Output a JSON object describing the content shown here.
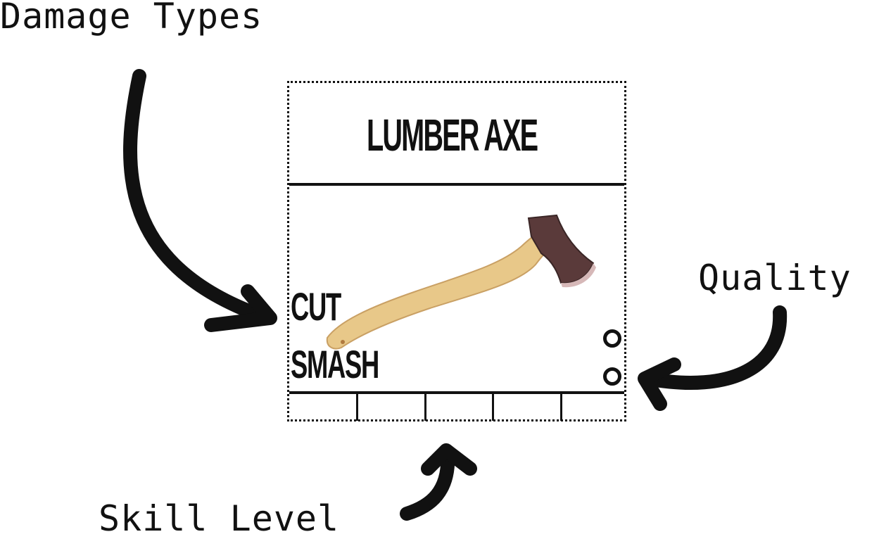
{
  "callouts": {
    "damage_types": "Damage Types",
    "quality": "Quality",
    "skill_level": "Skill Level"
  },
  "card": {
    "title": "LUMBER AXE",
    "image": "axe-illustration",
    "damage_types": [
      "CUT",
      "SMASH"
    ],
    "quality_pips": 2,
    "skill_level_slots": 5
  },
  "colors": {
    "ink": "#111111",
    "handle": "#e8c889",
    "axe_head": "#5a3a3a"
  }
}
